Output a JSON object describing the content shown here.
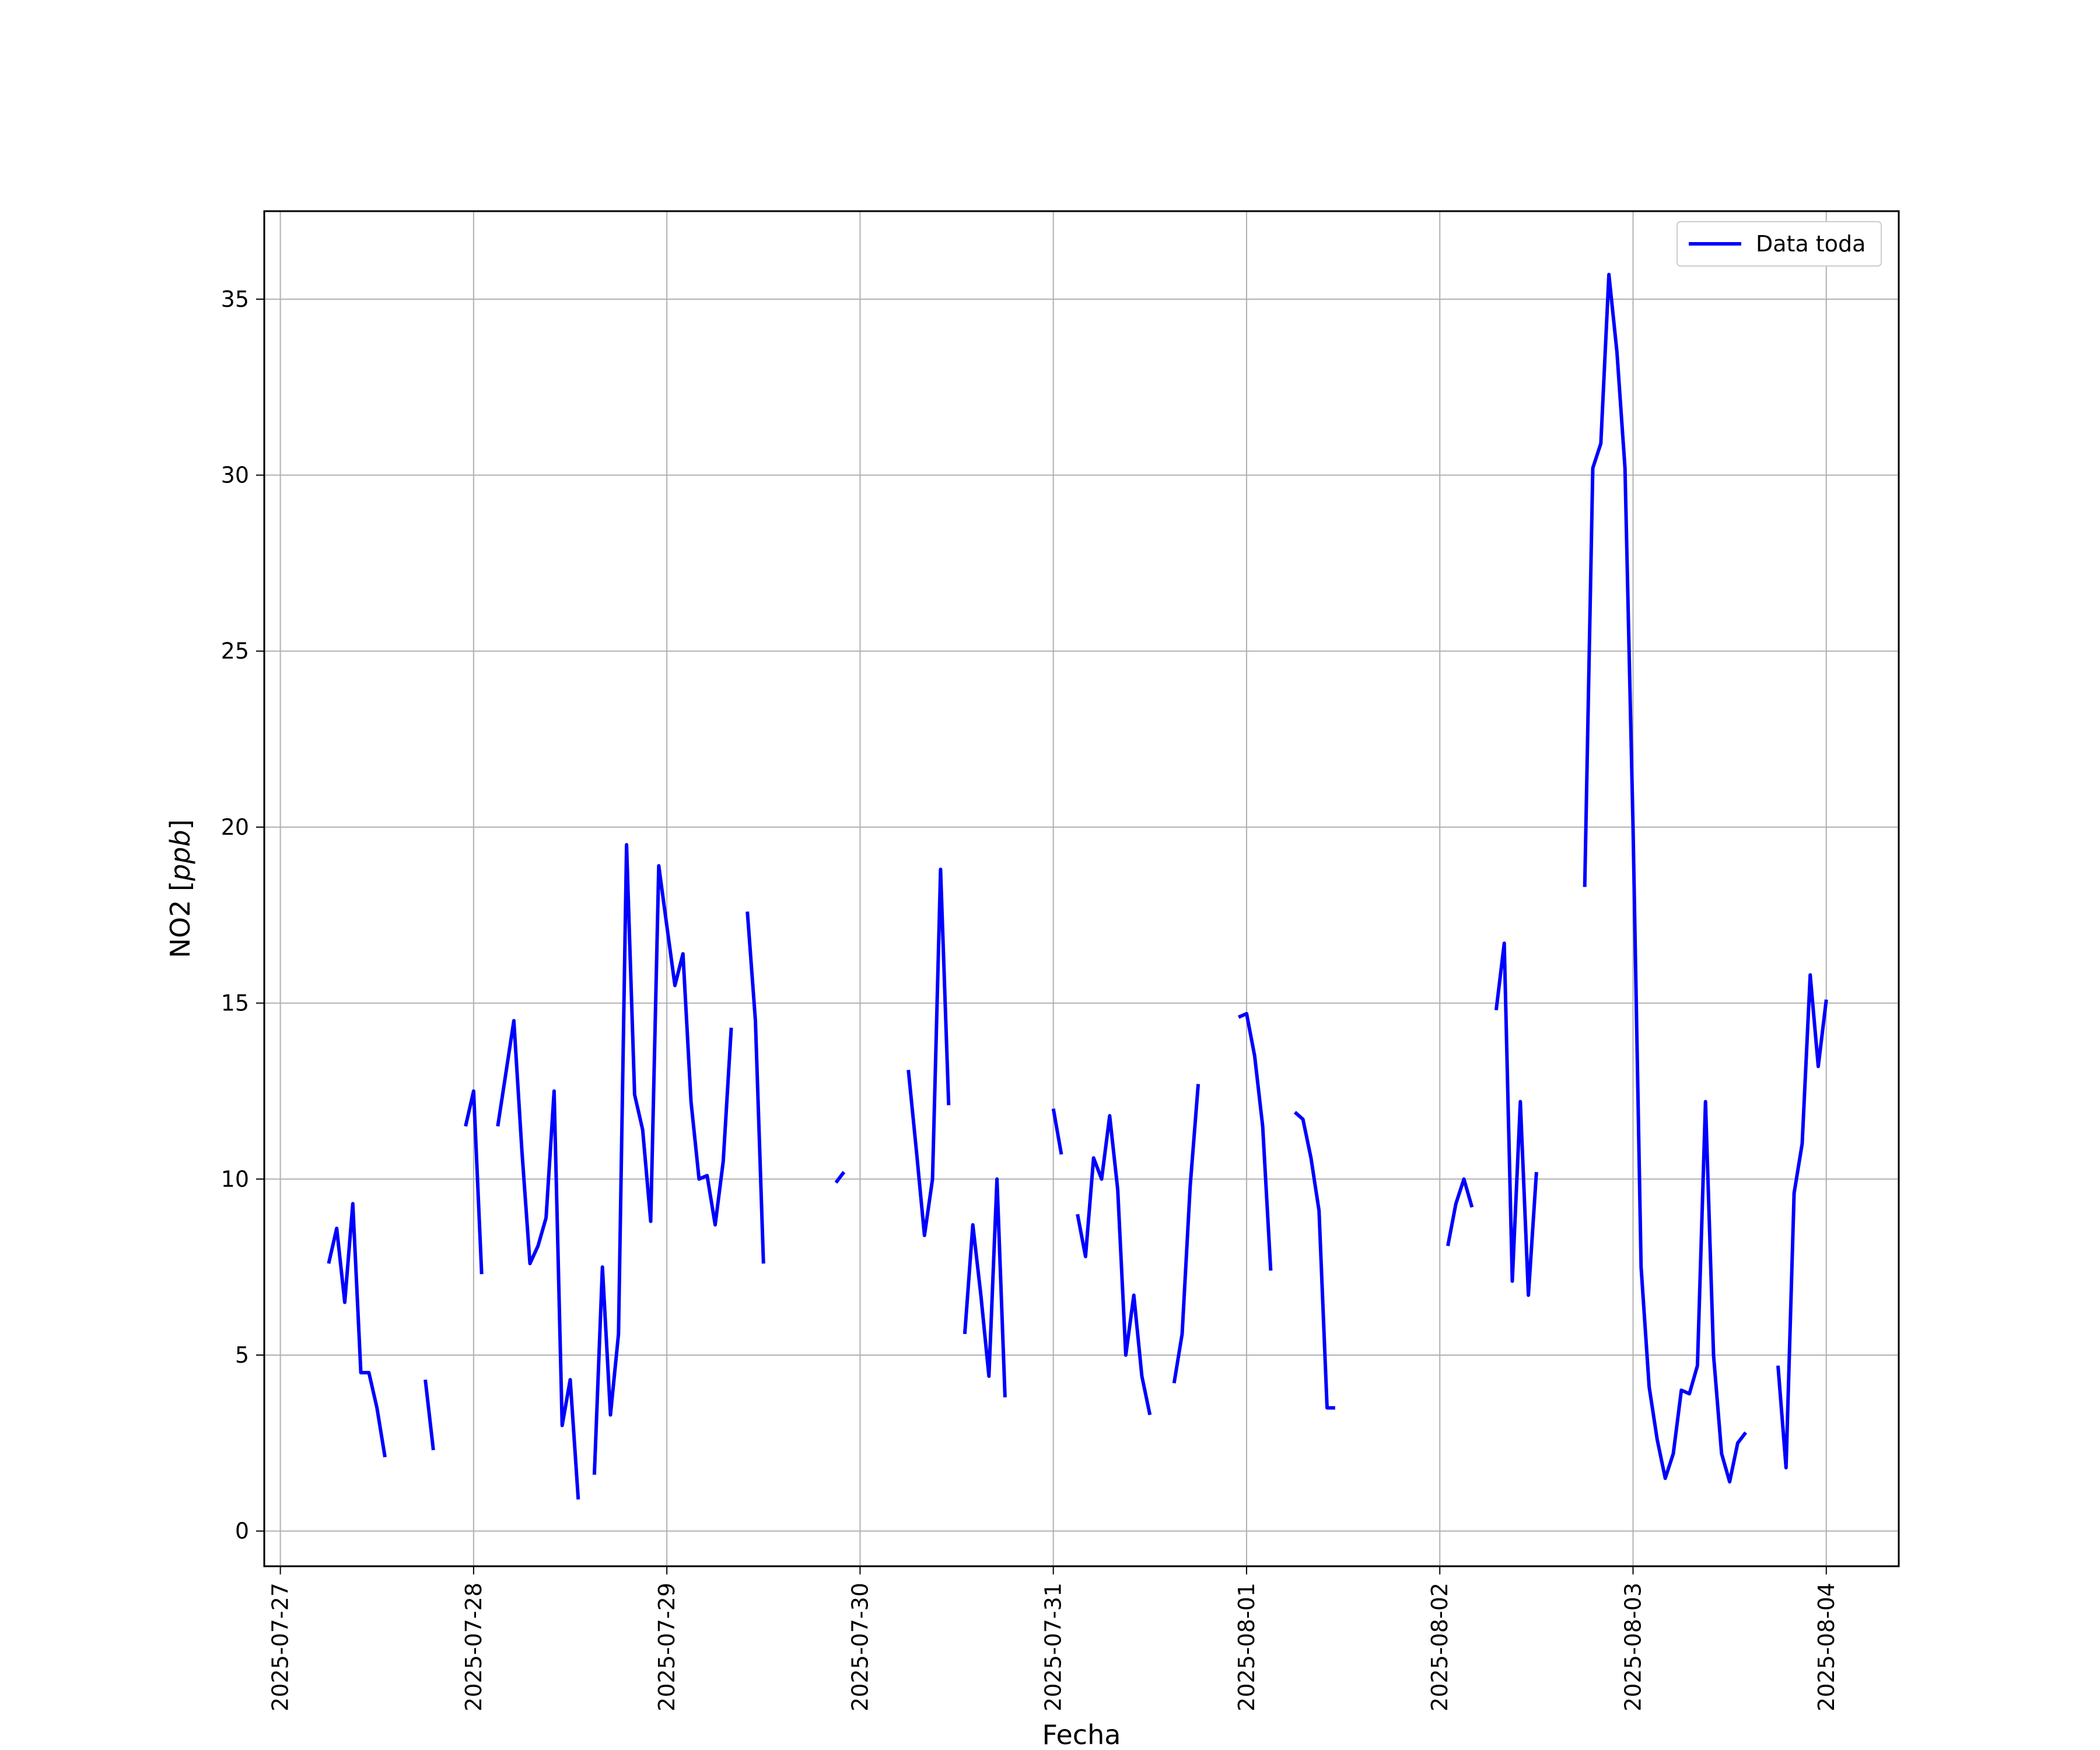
{
  "chart_data": {
    "type": "line",
    "title": "",
    "xlabel": "Fecha",
    "ylabel": "NO2 [ppb]",
    "ylabel_text": "NO2 [",
    "ylabel_unit": "ppb",
    "ylabel_close": "]",
    "xlim": [
      "2025-07-26T22:00",
      "2025-08-04T09:00"
    ],
    "ylim": [
      -1,
      37.5
    ],
    "x_ticks": [
      "2025-07-27",
      "2025-07-28",
      "2025-07-29",
      "2025-07-30",
      "2025-07-31",
      "2025-08-01",
      "2025-08-02",
      "2025-08-03",
      "2025-08-04"
    ],
    "y_ticks": [
      0,
      5,
      10,
      15,
      20,
      25,
      30,
      35
    ],
    "grid": true,
    "legend_position": "upper-right",
    "series": [
      {
        "name": "Data toda",
        "color": "#0000ff",
        "segments": [
          [
            [
              "2025-07-27T06:00",
              7.6
            ],
            [
              "2025-07-27T07:00",
              8.6
            ],
            [
              "2025-07-27T08:00",
              6.5
            ],
            [
              "2025-07-27T09:00",
              9.3
            ],
            [
              "2025-07-27T10:00",
              4.5
            ],
            [
              "2025-07-27T11:00",
              4.5
            ],
            [
              "2025-07-27T12:00",
              3.5
            ],
            [
              "2025-07-27T13:00",
              2.1
            ]
          ],
          [
            [
              "2025-07-27T18:00",
              4.3
            ],
            [
              "2025-07-27T19:00",
              2.3
            ]
          ],
          [
            [
              "2025-07-27T23:00",
              11.5
            ],
            [
              "2025-07-28T00:00",
              12.5
            ],
            [
              "2025-07-28T01:00",
              7.3
            ]
          ],
          [
            [
              "2025-07-28T03:00",
              11.5
            ],
            [
              "2025-07-28T04:00",
              13.0
            ],
            [
              "2025-07-28T05:00",
              14.5
            ],
            [
              "2025-07-28T06:00",
              10.8
            ],
            [
              "2025-07-28T07:00",
              7.6
            ],
            [
              "2025-07-28T08:00",
              8.1
            ],
            [
              "2025-07-28T09:00",
              8.9
            ],
            [
              "2025-07-28T10:00",
              12.5
            ],
            [
              "2025-07-28T11:00",
              3.0
            ],
            [
              "2025-07-28T12:00",
              4.3
            ],
            [
              "2025-07-28T13:00",
              0.9
            ]
          ],
          [
            [
              "2025-07-28T15:00",
              1.6
            ],
            [
              "2025-07-28T16:00",
              7.5
            ],
            [
              "2025-07-28T17:00",
              3.3
            ],
            [
              "2025-07-28T18:00",
              5.6
            ],
            [
              "2025-07-28T19:00",
              19.5
            ],
            [
              "2025-07-28T20:00",
              12.4
            ],
            [
              "2025-07-28T21:00",
              11.4
            ],
            [
              "2025-07-28T22:00",
              8.8
            ],
            [
              "2025-07-28T23:00",
              18.9
            ],
            [
              "2025-07-29T00:00",
              17.2
            ],
            [
              "2025-07-29T01:00",
              15.5
            ],
            [
              "2025-07-29T02:00",
              16.4
            ],
            [
              "2025-07-29T03:00",
              12.2
            ],
            [
              "2025-07-29T04:00",
              10.0
            ],
            [
              "2025-07-29T05:00",
              10.1
            ],
            [
              "2025-07-29T06:00",
              8.7
            ],
            [
              "2025-07-29T07:00",
              10.5
            ],
            [
              "2025-07-29T08:00",
              14.3
            ]
          ],
          [
            [
              "2025-07-29T10:00",
              17.6
            ],
            [
              "2025-07-29T11:00",
              14.5
            ],
            [
              "2025-07-29T12:00",
              7.6
            ]
          ],
          [
            [
              "2025-07-29T21:00",
              9.9
            ],
            [
              "2025-07-29T22:00",
              10.2
            ]
          ],
          [
            [
              "2025-07-30T06:00",
              13.1
            ],
            [
              "2025-07-30T07:00",
              10.8
            ],
            [
              "2025-07-30T08:00",
              8.4
            ],
            [
              "2025-07-30T09:00",
              10.0
            ],
            [
              "2025-07-30T10:00",
              18.8
            ],
            [
              "2025-07-30T11:00",
              12.1
            ]
          ],
          [
            [
              "2025-07-30T13:00",
              5.6
            ],
            [
              "2025-07-30T14:00",
              8.7
            ],
            [
              "2025-07-30T15:00",
              6.7
            ],
            [
              "2025-07-30T16:00",
              4.4
            ],
            [
              "2025-07-30T17:00",
              10.0
            ],
            [
              "2025-07-30T18:00",
              3.8
            ]
          ],
          [
            [
              "2025-07-31T00:00",
              12.0
            ],
            [
              "2025-07-31T01:00",
              10.7
            ]
          ],
          [
            [
              "2025-07-31T03:00",
              9.0
            ],
            [
              "2025-07-31T04:00",
              7.8
            ],
            [
              "2025-07-31T05:00",
              10.6
            ],
            [
              "2025-07-31T06:00",
              10.0
            ],
            [
              "2025-07-31T07:00",
              11.8
            ],
            [
              "2025-07-31T08:00",
              9.7
            ],
            [
              "2025-07-31T09:00",
              5.0
            ],
            [
              "2025-07-31T10:00",
              6.7
            ],
            [
              "2025-07-31T11:00",
              4.4
            ],
            [
              "2025-07-31T12:00",
              3.3
            ]
          ],
          [
            [
              "2025-07-31T15:00",
              4.2
            ],
            [
              "2025-07-31T16:00",
              5.6
            ],
            [
              "2025-07-31T17:00",
              9.8
            ],
            [
              "2025-07-31T18:00",
              12.7
            ]
          ],
          [
            [
              "2025-07-31T23:00",
              14.6
            ],
            [
              "2025-08-01T00:00",
              14.7
            ],
            [
              "2025-08-01T01:00",
              13.5
            ],
            [
              "2025-08-01T02:00",
              11.5
            ],
            [
              "2025-08-01T03:00",
              7.4
            ]
          ],
          [
            [
              "2025-08-01T06:00",
              11.9
            ],
            [
              "2025-08-01T07:00",
              11.7
            ],
            [
              "2025-08-01T08:00",
              10.6
            ],
            [
              "2025-08-01T09:00",
              9.1
            ],
            [
              "2025-08-01T10:00",
              3.5
            ],
            [
              "2025-08-01T11:00",
              3.5
            ]
          ],
          [
            [
              "2025-08-02T01:00",
              8.1
            ],
            [
              "2025-08-02T02:00",
              9.3
            ],
            [
              "2025-08-02T03:00",
              10.0
            ],
            [
              "2025-08-02T04:00",
              9.2
            ]
          ],
          [
            [
              "2025-08-02T07:00",
              14.8
            ],
            [
              "2025-08-02T08:00",
              16.7
            ],
            [
              "2025-08-02T09:00",
              7.1
            ],
            [
              "2025-08-02T10:00",
              12.2
            ],
            [
              "2025-08-02T11:00",
              6.7
            ],
            [
              "2025-08-02T12:00",
              10.2
            ]
          ],
          [
            [
              "2025-08-02T18:00",
              18.3
            ],
            [
              "2025-08-02T19:00",
              30.2
            ],
            [
              "2025-08-02T20:00",
              30.9
            ],
            [
              "2025-08-02T21:00",
              35.7
            ],
            [
              "2025-08-02T22:00",
              33.5
            ],
            [
              "2025-08-02T23:00",
              30.2
            ],
            [
              "2025-08-03T00:00",
              20.0
            ],
            [
              "2025-08-03T01:00",
              7.5
            ],
            [
              "2025-08-03T02:00",
              4.1
            ],
            [
              "2025-08-03T03:00",
              2.6
            ],
            [
              "2025-08-03T04:00",
              1.5
            ],
            [
              "2025-08-03T05:00",
              2.2
            ],
            [
              "2025-08-03T06:00",
              4.0
            ],
            [
              "2025-08-03T07:00",
              3.9
            ],
            [
              "2025-08-03T08:00",
              4.7
            ],
            [
              "2025-08-03T09:00",
              12.2
            ],
            [
              "2025-08-03T10:00",
              5.0
            ],
            [
              "2025-08-03T11:00",
              2.2
            ],
            [
              "2025-08-03T12:00",
              1.4
            ],
            [
              "2025-08-03T13:00",
              2.5
            ],
            [
              "2025-08-03T14:00",
              2.8
            ]
          ],
          [
            [
              "2025-08-03T18:00",
              4.7
            ],
            [
              "2025-08-03T19:00",
              1.8
            ],
            [
              "2025-08-03T20:00",
              9.6
            ],
            [
              "2025-08-03T21:00",
              11.0
            ],
            [
              "2025-08-03T22:00",
              15.8
            ],
            [
              "2025-08-03T23:00",
              13.2
            ],
            [
              "2025-08-04T00:00",
              15.1
            ]
          ]
        ]
      }
    ]
  }
}
